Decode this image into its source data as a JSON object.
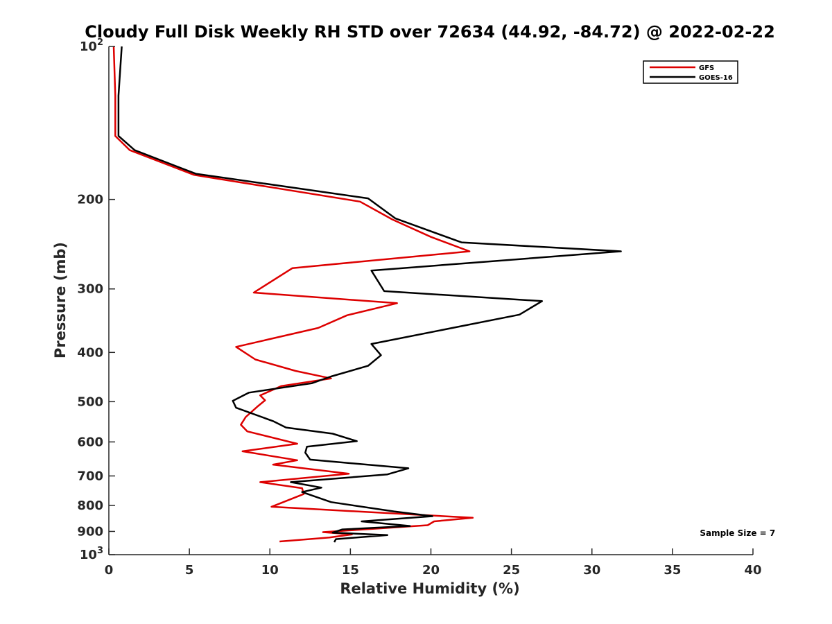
{
  "chart_data": {
    "type": "line",
    "title": "Cloudy Full Disk Weekly RH STD over 72634 (44.92, -84.72) @ 2022-02-22",
    "xlabel": "Relative Humidity (%)",
    "ylabel": "Pressure (mb)",
    "xlim": [
      0,
      40
    ],
    "ylim": [
      100,
      1000
    ],
    "y_scale": "log",
    "y_reversed": true,
    "grid": false,
    "legend_position": "top-right",
    "x_ticks": [
      0,
      5,
      10,
      15,
      20,
      25,
      30,
      35,
      40
    ],
    "x_tick_labels": [
      "0",
      "5",
      "10",
      "15",
      "20",
      "25",
      "30",
      "35",
      "40"
    ],
    "y_ticks": [
      100,
      200,
      300,
      400,
      500,
      600,
      700,
      800,
      900,
      1000
    ],
    "y_tick_labels": [
      {
        "base": "10",
        "exp": "2"
      },
      {
        "base": "200",
        "exp": ""
      },
      {
        "base": "300",
        "exp": ""
      },
      {
        "base": "400",
        "exp": ""
      },
      {
        "base": "500",
        "exp": ""
      },
      {
        "base": "600",
        "exp": ""
      },
      {
        "base": "700",
        "exp": ""
      },
      {
        "base": "800",
        "exp": ""
      },
      {
        "base": "900",
        "exp": ""
      },
      {
        "base": "10",
        "exp": "3"
      }
    ],
    "series": [
      {
        "name": "GFS",
        "color": "#dd0000",
        "points": [
          [
            0.3,
            100
          ],
          [
            0.4,
            125
          ],
          [
            0.4,
            150
          ],
          [
            1.3,
            160
          ],
          [
            5.3,
            179
          ],
          [
            15.6,
            202
          ],
          [
            17.6,
            219
          ],
          [
            20.0,
            237
          ],
          [
            22.4,
            253
          ],
          [
            11.4,
            273
          ],
          [
            9.0,
            305
          ],
          [
            17.9,
            320
          ],
          [
            14.8,
            338
          ],
          [
            13.0,
            358
          ],
          [
            7.9,
            390
          ],
          [
            9.1,
            413
          ],
          [
            11.6,
            435
          ],
          [
            13.8,
            450
          ],
          [
            10.7,
            466
          ],
          [
            9.4,
            486
          ],
          [
            9.7,
            497
          ],
          [
            9.2,
            512
          ],
          [
            8.5,
            536
          ],
          [
            8.2,
            555
          ],
          [
            8.6,
            572
          ],
          [
            11.7,
            605
          ],
          [
            8.3,
            626
          ],
          [
            11.7,
            652
          ],
          [
            10.2,
            665
          ],
          [
            14.9,
            693
          ],
          [
            9.4,
            720
          ],
          [
            12.0,
            740
          ],
          [
            12.1,
            760
          ],
          [
            10.1,
            805
          ],
          [
            22.6,
            846
          ],
          [
            20.2,
            860
          ],
          [
            19.8,
            875
          ],
          [
            13.3,
            903
          ],
          [
            15.1,
            912
          ],
          [
            13.7,
            925
          ],
          [
            10.6,
            942
          ]
        ]
      },
      {
        "name": "GOES-16",
        "color": "#000000",
        "points": [
          [
            0.8,
            100
          ],
          [
            0.6,
            125
          ],
          [
            0.6,
            150
          ],
          [
            1.6,
            160
          ],
          [
            5.4,
            178
          ],
          [
            16.1,
            199
          ],
          [
            17.8,
            218
          ],
          [
            21.9,
            243
          ],
          [
            31.8,
            253
          ],
          [
            16.3,
            276
          ],
          [
            17.1,
            303
          ],
          [
            26.9,
            317
          ],
          [
            25.5,
            337
          ],
          [
            16.3,
            385
          ],
          [
            16.9,
            405
          ],
          [
            16.1,
            425
          ],
          [
            13.8,
            446
          ],
          [
            12.6,
            460
          ],
          [
            8.7,
            480
          ],
          [
            7.7,
            498
          ],
          [
            7.9,
            514
          ],
          [
            10.2,
            546
          ],
          [
            11.0,
            562
          ],
          [
            13.9,
            578
          ],
          [
            15.4,
            598
          ],
          [
            12.3,
            613
          ],
          [
            12.2,
            630
          ],
          [
            12.5,
            650
          ],
          [
            18.6,
            676
          ],
          [
            17.3,
            695
          ],
          [
            11.3,
            720
          ],
          [
            13.2,
            738
          ],
          [
            12.0,
            753
          ],
          [
            13.8,
            788
          ],
          [
            17.7,
            822
          ],
          [
            20.1,
            840
          ],
          [
            15.7,
            860
          ],
          [
            18.7,
            878
          ],
          [
            14.5,
            892
          ],
          [
            13.9,
            905
          ],
          [
            17.3,
            915
          ],
          [
            14.1,
            932
          ],
          [
            14.0,
            945
          ]
        ]
      }
    ],
    "annotations": [
      {
        "text": "Sample Size = 7",
        "x": 36.7,
        "y": 905
      }
    ]
  }
}
